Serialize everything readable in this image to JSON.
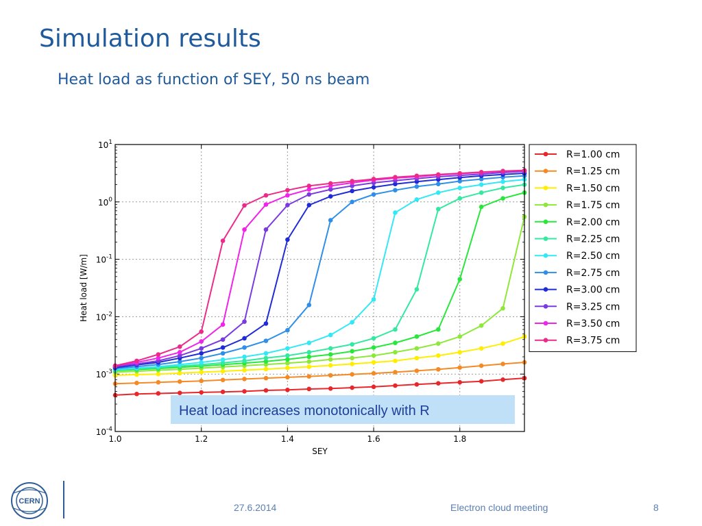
{
  "slide": {
    "title": "Simulation results",
    "subtitle": "Heat load as function of SEY, 50 ns beam",
    "callout": "Heat load increases monotonically with R",
    "footer": {
      "date": "27.6.2014",
      "meeting": "Electron cloud meeting",
      "page": "8"
    },
    "logo_text": "CERN",
    "colors": {
      "title": "#1f5a9c",
      "callout_bg": "#bfe0f7",
      "callout_text": "#1f3e9a",
      "footer": "#5b7fb5"
    }
  },
  "chart_data": {
    "type": "line",
    "xlabel": "SEY",
    "ylabel": "Heat load [W/m]",
    "xlim": [
      1.0,
      1.95
    ],
    "ylim": [
      0.0001,
      10
    ],
    "yscale": "log",
    "grid": true,
    "legend_position": "outside-right",
    "xticks": [
      1.0,
      1.2,
      1.4,
      1.6,
      1.8
    ],
    "xtick_labels": [
      "1.0",
      "1.2",
      "1.4",
      "1.6",
      "1.8"
    ],
    "yticks": [
      0.0001,
      0.001,
      0.01,
      0.1,
      1,
      10
    ],
    "ytick_labels": [
      {
        "base": "10",
        "exp": "-4"
      },
      {
        "base": "10",
        "exp": "-3"
      },
      {
        "base": "10",
        "exp": "-2"
      },
      {
        "base": "10",
        "exp": "-1"
      },
      {
        "base": "10",
        "exp": "0"
      },
      {
        "base": "10",
        "exp": "1"
      }
    ],
    "x": [
      1.0,
      1.05,
      1.1,
      1.15,
      1.2,
      1.25,
      1.3,
      1.35,
      1.4,
      1.45,
      1.5,
      1.55,
      1.6,
      1.65,
      1.7,
      1.75,
      1.8,
      1.85,
      1.9,
      1.95
    ],
    "series": [
      {
        "name": "R=1.00 cm",
        "color": "#e8272a",
        "values": [
          0.00043,
          0.00045,
          0.00046,
          0.00047,
          0.00048,
          0.00049,
          0.0005,
          0.00052,
          0.00053,
          0.00055,
          0.00056,
          0.00058,
          0.0006,
          0.00063,
          0.00066,
          0.00069,
          0.00072,
          0.00075,
          0.0008,
          0.00085
        ]
      },
      {
        "name": "R=1.25 cm",
        "color": "#f58a25",
        "values": [
          0.00068,
          0.0007,
          0.00072,
          0.00074,
          0.00076,
          0.00079,
          0.00082,
          0.00085,
          0.00088,
          0.00091,
          0.00095,
          0.00099,
          0.00103,
          0.00108,
          0.00114,
          0.00121,
          0.0013,
          0.0014,
          0.0015,
          0.0016
        ]
      },
      {
        "name": "R=1.50 cm",
        "color": "#ffee00",
        "values": [
          0.00095,
          0.00098,
          0.001,
          0.00104,
          0.00108,
          0.00112,
          0.00117,
          0.00122,
          0.00128,
          0.00134,
          0.00142,
          0.0015,
          0.0016,
          0.0017,
          0.0019,
          0.0021,
          0.0024,
          0.0028,
          0.0034,
          0.0045
        ]
      },
      {
        "name": "R=1.75 cm",
        "color": "#8ee83a",
        "values": [
          0.00108,
          0.00112,
          0.00117,
          0.00121,
          0.00127,
          0.00133,
          0.0014,
          0.00147,
          0.00155,
          0.00165,
          0.0018,
          0.0019,
          0.0021,
          0.0024,
          0.0028,
          0.0034,
          0.0045,
          0.007,
          0.014,
          0.55
        ]
      },
      {
        "name": "R=2.00 cm",
        "color": "#27e83a",
        "values": [
          0.00115,
          0.0012,
          0.00125,
          0.00131,
          0.00138,
          0.00146,
          0.00155,
          0.00166,
          0.0018,
          0.002,
          0.0022,
          0.0025,
          0.0029,
          0.0035,
          0.0045,
          0.006,
          0.045,
          0.82,
          1.15,
          1.45
        ]
      },
      {
        "name": "R=2.25 cm",
        "color": "#33e8a0",
        "values": [
          0.00118,
          0.00124,
          0.0013,
          0.00138,
          0.00146,
          0.00157,
          0.0017,
          0.0019,
          0.0021,
          0.0024,
          0.0028,
          0.0033,
          0.0042,
          0.006,
          0.03,
          0.75,
          1.15,
          1.45,
          1.75,
          2.0
        ]
      },
      {
        "name": "R=2.50 cm",
        "color": "#33e8f5",
        "values": [
          0.0012,
          0.00127,
          0.00135,
          0.00146,
          0.0016,
          0.00178,
          0.002,
          0.0023,
          0.0028,
          0.0035,
          0.0048,
          0.008,
          0.02,
          0.65,
          1.1,
          1.45,
          1.75,
          2.0,
          2.25,
          2.45
        ]
      },
      {
        "name": "R=2.75 cm",
        "color": "#2e8ee8",
        "values": [
          0.00125,
          0.00135,
          0.00147,
          0.00165,
          0.0019,
          0.0023,
          0.0029,
          0.0038,
          0.0058,
          0.016,
          0.48,
          1.0,
          1.35,
          1.6,
          1.85,
          2.05,
          2.3,
          2.5,
          2.7,
          2.85
        ]
      },
      {
        "name": "R=3.00 cm",
        "color": "#1f2bd6",
        "values": [
          0.0013,
          0.00145,
          0.0016,
          0.0019,
          0.0023,
          0.0029,
          0.0042,
          0.0076,
          0.22,
          0.88,
          1.25,
          1.55,
          1.8,
          2.05,
          2.25,
          2.45,
          2.65,
          2.85,
          3.0,
          3.15
        ]
      },
      {
        "name": "R=3.25 cm",
        "color": "#7a3ae0",
        "values": [
          0.00135,
          0.0015,
          0.0017,
          0.0021,
          0.0028,
          0.004,
          0.0082,
          0.33,
          0.88,
          1.35,
          1.65,
          1.9,
          2.15,
          2.35,
          2.55,
          2.75,
          2.9,
          3.05,
          3.25,
          3.4
        ]
      },
      {
        "name": "R=3.50 cm",
        "color": "#f024e8",
        "values": [
          0.0014,
          0.0016,
          0.0019,
          0.0024,
          0.0037,
          0.0073,
          0.33,
          0.9,
          1.3,
          1.65,
          1.9,
          2.15,
          2.4,
          2.6,
          2.75,
          2.95,
          3.1,
          3.25,
          3.4,
          3.5
        ]
      },
      {
        "name": "R=3.75 cm",
        "color": "#ec2a8a",
        "values": [
          0.0014,
          0.0017,
          0.0022,
          0.003,
          0.0055,
          0.21,
          0.87,
          1.3,
          1.6,
          1.9,
          2.1,
          2.3,
          2.5,
          2.7,
          2.85,
          3.0,
          3.15,
          3.3,
          3.45,
          3.55
        ]
      }
    ]
  }
}
